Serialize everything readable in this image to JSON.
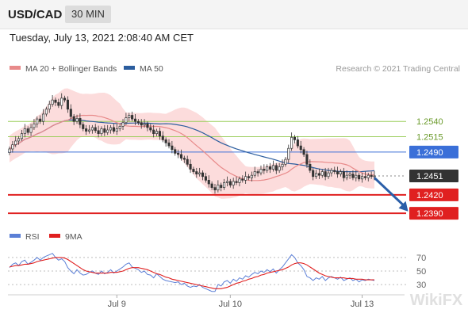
{
  "header": {
    "symbol": "USD/CAD",
    "timeframe": "30 MIN"
  },
  "datetime": "Tuesday, July 13, 2021 2:08:40 AM CET",
  "legend": {
    "ma20": "MA 20 + Bollinger Bands",
    "ma50": "MA 50",
    "credit": "Research © 2021 Trading Central"
  },
  "rsi_legend": {
    "rsi": "RSI",
    "ma9": "9MA"
  },
  "watermark": "WikiFX",
  "colors": {
    "ma20": "#e88a8a",
    "ma50": "#2b5d9e",
    "band": "#fbd6d6",
    "support": "#e02020",
    "resistance": "#9acd5a",
    "pivot": "#3a6fd8",
    "current": "#333333",
    "arrow": "#2a5ea8"
  },
  "chart_data": [
    {
      "type": "candlestick",
      "ylim": [
        1.2372,
        1.2605
      ],
      "x_ticks": [
        {
          "label": "Jul 9",
          "index": 35
        },
        {
          "label": "Jul 10",
          "index": 72
        },
        {
          "label": "Jul 13",
          "index": 115
        }
      ],
      "levels": [
        {
          "label": "1.2540",
          "value": 1.254,
          "kind": "resistance"
        },
        {
          "label": "1.2515",
          "value": 1.2515,
          "kind": "resistance"
        },
        {
          "label": "1.2490",
          "value": 1.249,
          "kind": "pivot"
        },
        {
          "label": "1.2451",
          "value": 1.2451,
          "kind": "current"
        },
        {
          "label": "1.2420",
          "value": 1.242,
          "kind": "support"
        },
        {
          "label": "1.2390",
          "value": 1.239,
          "kind": "support"
        }
      ],
      "arrow": {
        "from_index": 119,
        "from_price": 1.2448,
        "to_index": 130,
        "to_price": 1.2393
      },
      "closes": [
        1.2495,
        1.2502,
        1.2508,
        1.2512,
        1.252,
        1.2528,
        1.2522,
        1.253,
        1.2536,
        1.2544,
        1.254,
        1.2552,
        1.256,
        1.2568,
        1.2575,
        1.2571,
        1.2566,
        1.2578,
        1.2575,
        1.256,
        1.2548,
        1.254,
        1.2545,
        1.2535,
        1.2528,
        1.2524,
        1.2526,
        1.253,
        1.2525,
        1.252,
        1.2528,
        1.2522,
        1.2526,
        1.253,
        1.2524,
        1.2528,
        1.2532,
        1.2538,
        1.2546,
        1.255,
        1.2544,
        1.254,
        1.2538,
        1.2534,
        1.2536,
        1.253,
        1.2526,
        1.252,
        1.2524,
        1.2516,
        1.251,
        1.2505,
        1.25,
        1.2494,
        1.2488,
        1.2486,
        1.248,
        1.2478,
        1.247,
        1.2462,
        1.2458,
        1.2454,
        1.2456,
        1.245,
        1.2444,
        1.2438,
        1.2432,
        1.2428,
        1.2436,
        1.2432,
        1.244,
        1.2442,
        1.2436,
        1.2442,
        1.244,
        1.2446,
        1.2444,
        1.245,
        1.2448,
        1.2452,
        1.2458,
        1.2456,
        1.2462,
        1.246,
        1.2466,
        1.2462,
        1.2468,
        1.246,
        1.2466,
        1.247,
        1.2478,
        1.2496,
        1.2514,
        1.251,
        1.25,
        1.2494,
        1.2486,
        1.247,
        1.246,
        1.245,
        1.2455,
        1.2452,
        1.2458,
        1.245,
        1.2456,
        1.246,
        1.2458,
        1.2454,
        1.2458,
        1.2448,
        1.2452,
        1.2454,
        1.2448,
        1.2452,
        1.2446,
        1.245,
        1.2448,
        1.2452,
        1.245,
        1.2451
      ]
    },
    {
      "type": "line",
      "title": "RSI",
      "ylim": [
        15,
        85
      ],
      "y_ticks": [
        70,
        50,
        30
      ],
      "series": [
        {
          "name": "RSI",
          "values": [
            55,
            60,
            62,
            58,
            64,
            66,
            60,
            63,
            66,
            70,
            66,
            70,
            72,
            74,
            76,
            70,
            66,
            68,
            64,
            55,
            50,
            46,
            52,
            47,
            44,
            45,
            48,
            50,
            47,
            45,
            50,
            46,
            48,
            52,
            47,
            50,
            53,
            56,
            60,
            62,
            56,
            54,
            52,
            48,
            50,
            45,
            44,
            40,
            46,
            42,
            38,
            36,
            35,
            34,
            33,
            34,
            30,
            32,
            28,
            26,
            28,
            27,
            30,
            26,
            24,
            22,
            20,
            20,
            30,
            28,
            34,
            36,
            32,
            38,
            35,
            40,
            38,
            43,
            41,
            45,
            48,
            46,
            50,
            48,
            52,
            49,
            53,
            47,
            52,
            56,
            62,
            68,
            74,
            70,
            62,
            58,
            52,
            42,
            40,
            36,
            40,
            38,
            42,
            36,
            40,
            42,
            40,
            38,
            41,
            36,
            38,
            40,
            36,
            38,
            34,
            37,
            36,
            38,
            37,
            36
          ]
        },
        {
          "name": "9MA",
          "values": [
            56,
            57,
            58,
            58,
            59,
            60,
            60,
            61,
            62,
            64,
            65,
            66,
            67,
            68,
            69,
            70,
            70,
            70,
            69,
            67,
            64,
            61,
            58,
            55,
            52,
            50,
            49,
            48,
            47,
            47,
            47,
            47,
            47,
            48,
            48,
            48,
            49,
            50,
            52,
            54,
            55,
            55,
            55,
            54,
            53,
            52,
            50,
            48,
            46,
            45,
            43,
            41,
            40,
            38,
            37,
            36,
            35,
            34,
            33,
            32,
            31,
            30,
            29,
            28,
            27,
            26,
            25,
            24,
            24,
            24,
            25,
            26,
            28,
            30,
            32,
            33,
            35,
            36,
            38,
            39,
            41,
            42,
            44,
            45,
            47,
            48,
            49,
            50,
            51,
            52,
            54,
            56,
            59,
            61,
            62,
            62,
            61,
            59,
            56,
            53,
            50,
            47,
            45,
            43,
            42,
            41,
            40,
            40,
            40,
            40,
            39,
            39,
            39,
            38,
            38,
            38,
            37,
            37,
            37,
            37
          ]
        }
      ]
    }
  ]
}
